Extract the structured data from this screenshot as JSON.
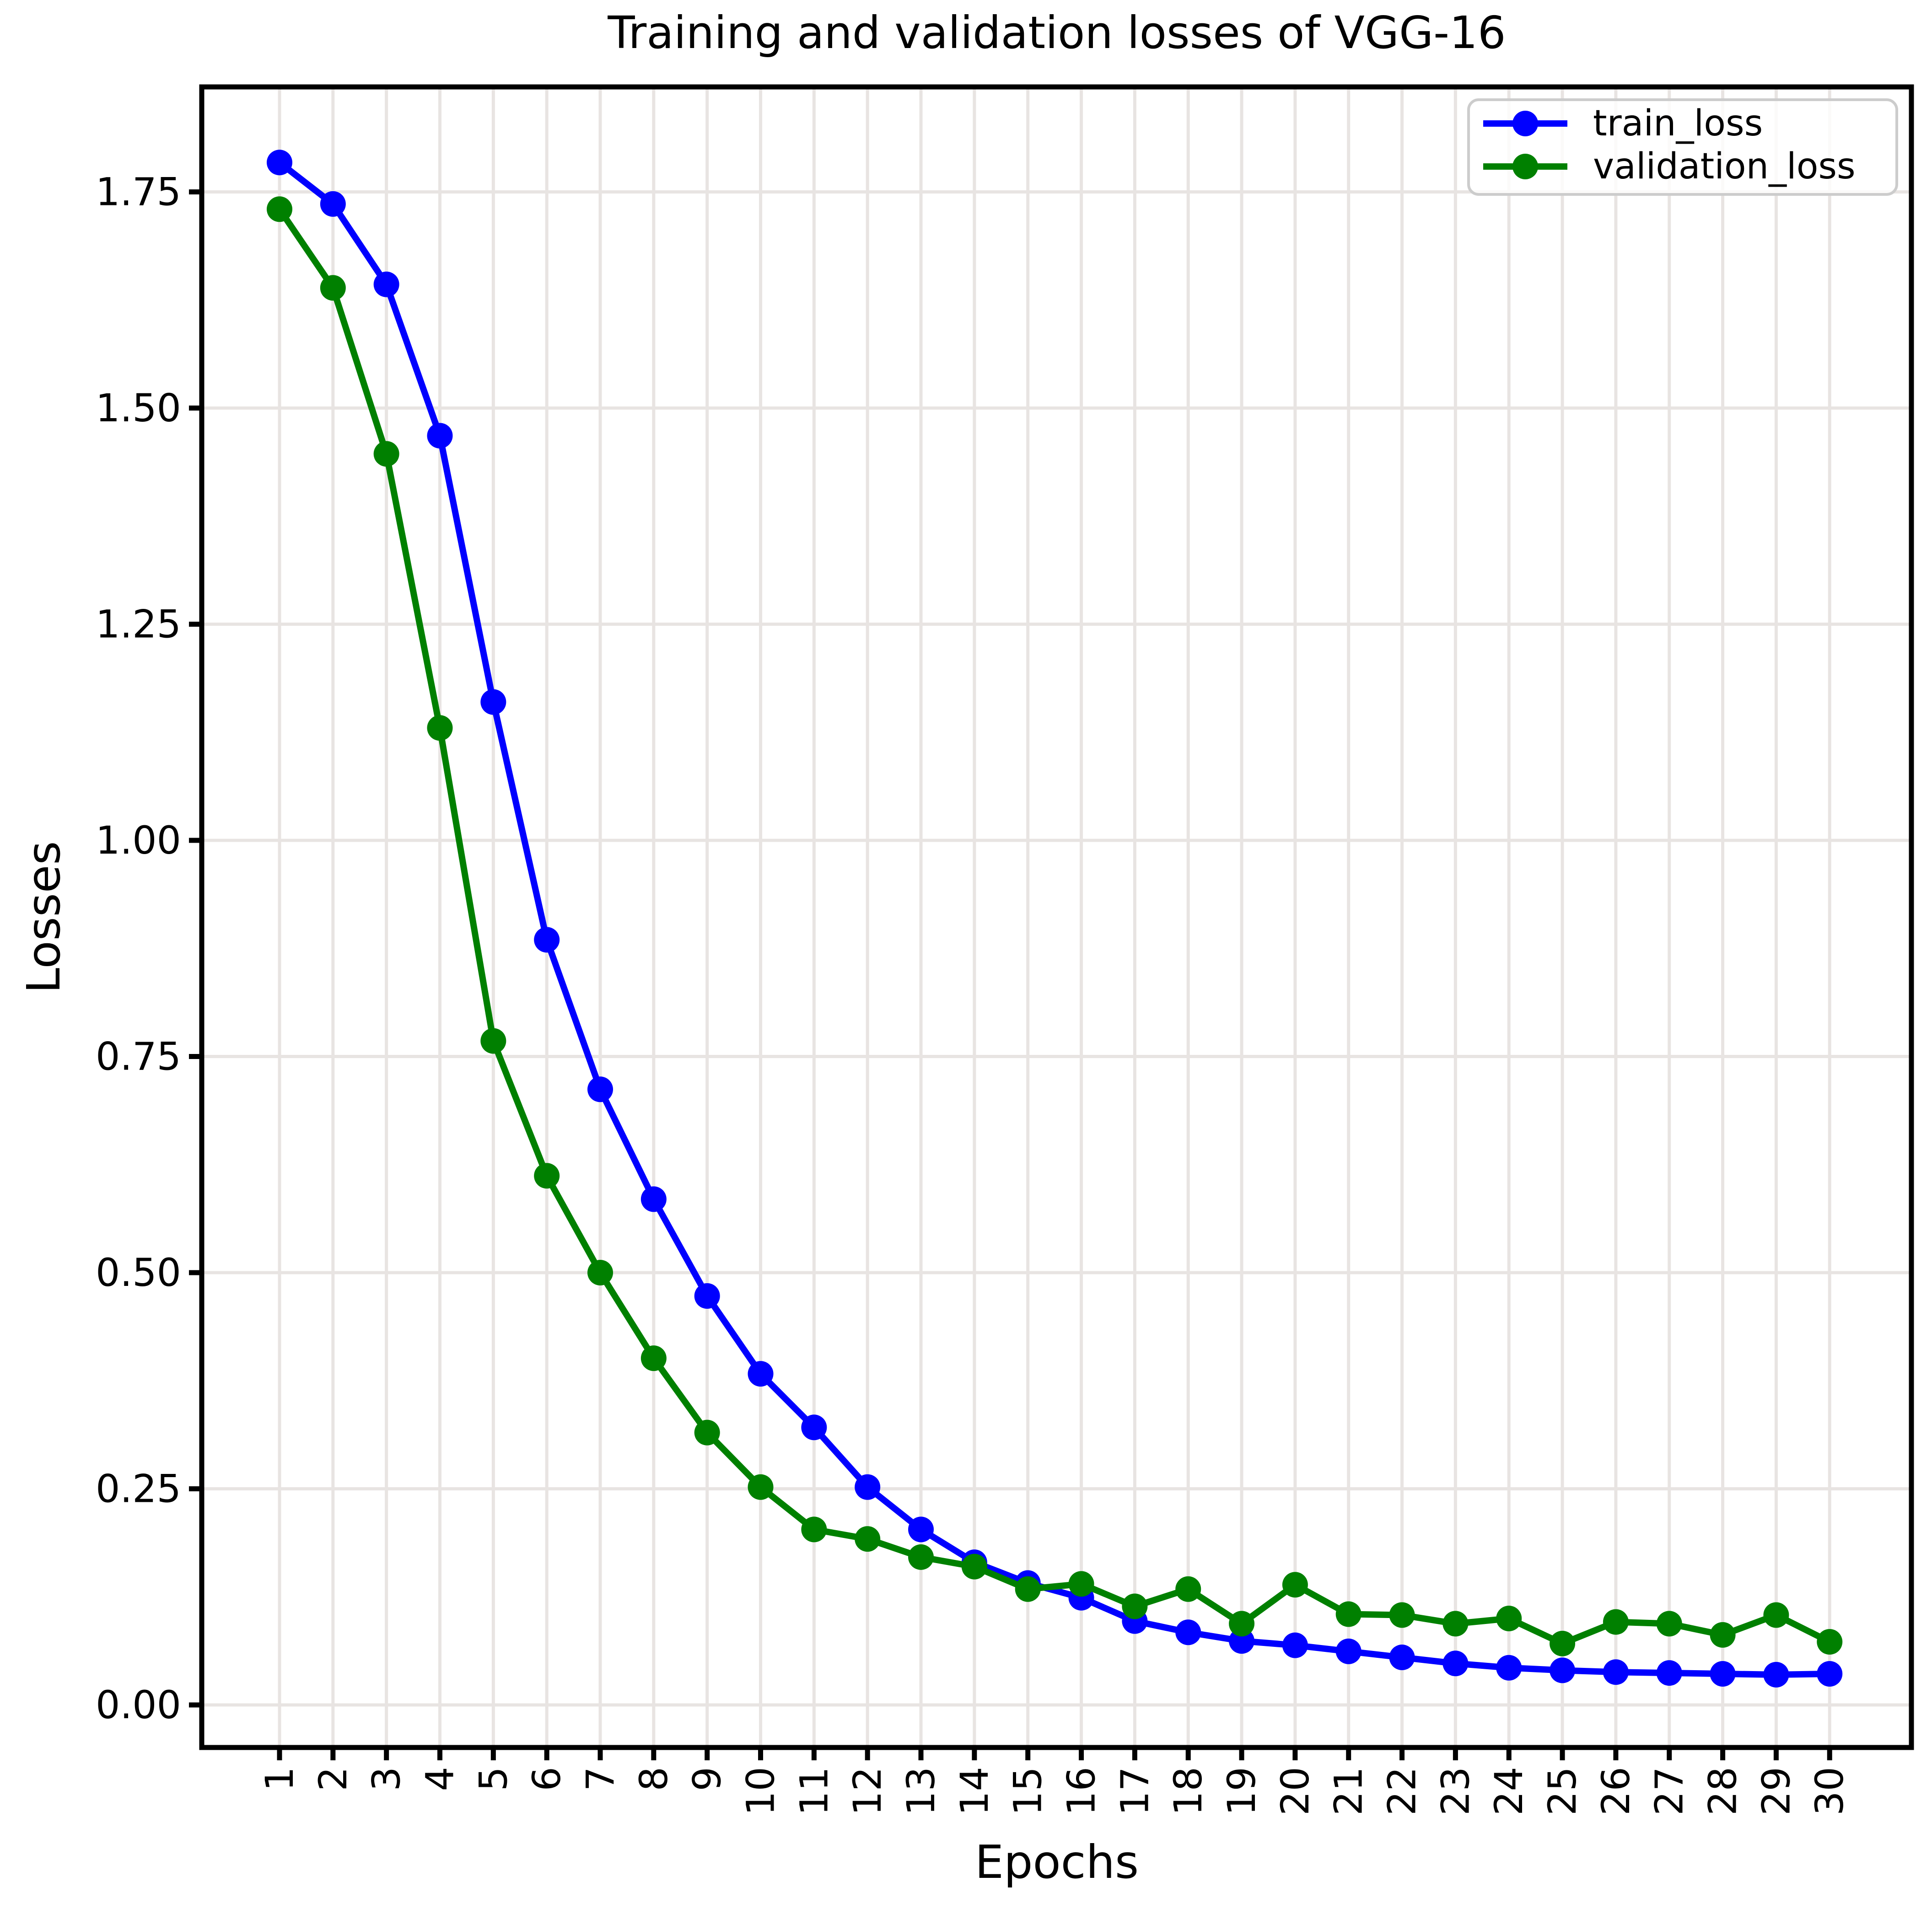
{
  "title": "Training and validation losses of VGG-16",
  "axes": {
    "xlabel": "Epochs",
    "ylabel": "Losses",
    "x_tick_labels": [
      "1",
      "2",
      "3",
      "4",
      "5",
      "6",
      "7",
      "8",
      "9",
      "10",
      "11",
      "12",
      "13",
      "14",
      "15",
      "16",
      "17",
      "18",
      "19",
      "20",
      "21",
      "22",
      "23",
      "24",
      "25",
      "26",
      "27",
      "28",
      "29",
      "30"
    ],
    "y_tick_labels": [
      "0.00",
      "0.25",
      "0.50",
      "0.75",
      "1.00",
      "1.25",
      "1.50",
      "1.75"
    ]
  },
  "legend": {
    "entries": [
      {
        "label": "train_loss",
        "color": "#0000ff"
      },
      {
        "label": "validation_loss",
        "color": "#008000"
      }
    ]
  },
  "colors": {
    "train": "#0000ff",
    "validation": "#008000",
    "grid": "#e8e4e2",
    "axis": "#000000",
    "legend_border": "#cccccc",
    "background": "#ffffff"
  },
  "chart_data": {
    "type": "line",
    "title": "Training and validation losses of VGG-16",
    "xlabel": "Epochs",
    "ylabel": "Losses",
    "x": [
      1,
      2,
      3,
      4,
      5,
      6,
      7,
      8,
      9,
      10,
      11,
      12,
      13,
      14,
      15,
      16,
      17,
      18,
      19,
      20,
      21,
      22,
      23,
      24,
      25,
      26,
      27,
      28,
      29,
      30
    ],
    "series": [
      {
        "name": "train_loss",
        "color": "#0000ff",
        "values": [
          1.784,
          1.736,
          1.643,
          1.468,
          1.16,
          0.885,
          0.712,
          0.585,
          0.473,
          0.383,
          0.321,
          0.252,
          0.203,
          0.165,
          0.141,
          0.124,
          0.097,
          0.084,
          0.074,
          0.069,
          0.062,
          0.055,
          0.048,
          0.043,
          0.04,
          0.038,
          0.037,
          0.036,
          0.035,
          0.036
        ]
      },
      {
        "name": "validation_loss",
        "color": "#008000",
        "values": [
          1.73,
          1.639,
          1.447,
          1.13,
          0.768,
          0.612,
          0.5,
          0.401,
          0.315,
          0.252,
          0.203,
          0.192,
          0.171,
          0.16,
          0.134,
          0.14,
          0.114,
          0.134,
          0.094,
          0.139,
          0.105,
          0.104,
          0.094,
          0.1,
          0.071,
          0.096,
          0.094,
          0.081,
          0.104,
          0.073
        ]
      }
    ],
    "xlim": [
      -0.455,
      31.53
    ],
    "ylim": [
      -0.0492,
      1.8714
    ],
    "grid": true,
    "legend_position": "upper right",
    "marker": "circle",
    "x_tick_rotation": -90
  }
}
